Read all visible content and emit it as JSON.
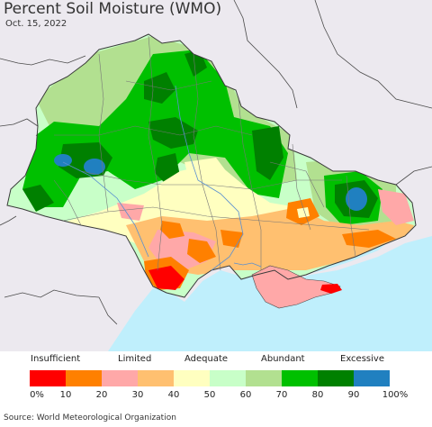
{
  "title": "Percent Soil Moisture (WMO)",
  "date": "Oct. 15, 2022",
  "source": "Source: World Meteorological Organization",
  "colors": {
    "sea": "#bfeffc",
    "land_outside": "#ece9ef",
    "border": "#4a4a4a"
  },
  "legend": {
    "categories": [
      "Insufficient",
      "Limited",
      "Adequate",
      "Abundant",
      "Excessive"
    ],
    "ticks": [
      "0%",
      "10",
      "20",
      "30",
      "40",
      "50",
      "60",
      "70",
      "80",
      "90",
      "100%"
    ],
    "swatch_colors": [
      "#ff0000",
      "#ff8000",
      "#ffa8a8",
      "#ffc070",
      "#ffffc0",
      "#c8ffc8",
      "#b2e090",
      "#00c000",
      "#008000",
      "#2080c0"
    ]
  }
}
